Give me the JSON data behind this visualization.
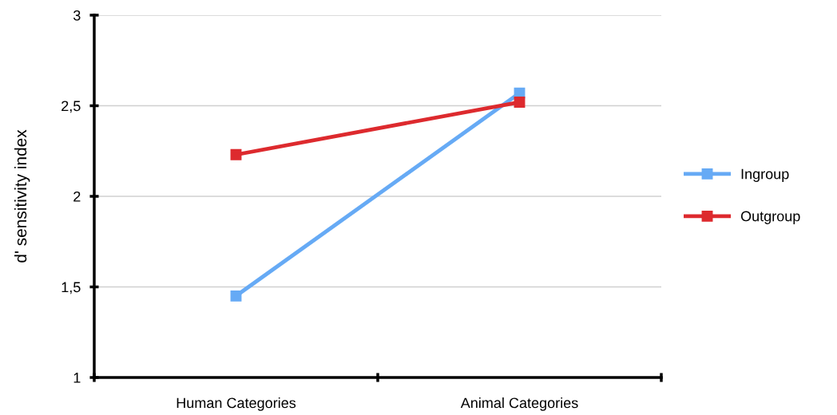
{
  "chart_data": {
    "type": "line",
    "ylabel": "d' sensitivity index",
    "categories": [
      "Human Categories",
      "Animal Categories"
    ],
    "series": [
      {
        "name": "Ingroup",
        "color": "#66aaf5",
        "values": [
          1.45,
          2.57
        ]
      },
      {
        "name": "Outgroup",
        "color": "#dd2a2e",
        "values": [
          2.23,
          2.52
        ]
      }
    ],
    "ylim": [
      1,
      3
    ],
    "yticks": [
      1,
      {
        "value": 1.5,
        "label": "1,5"
      },
      2,
      {
        "value": 2.5,
        "label": "2,5"
      },
      3
    ],
    "grid": "y",
    "legend": "right",
    "marker": "square",
    "line_style": "solid"
  }
}
